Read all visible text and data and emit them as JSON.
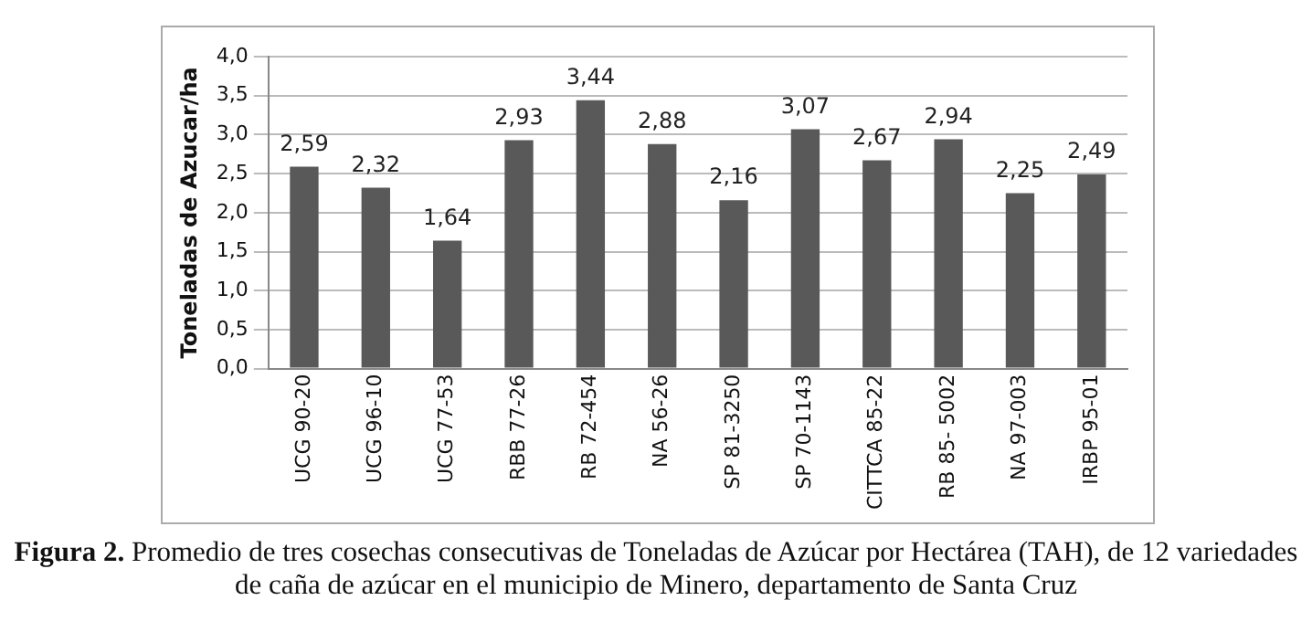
{
  "chart_data": {
    "type": "bar",
    "ylabel": "Toneladas de Azucar/ha",
    "categories": [
      "UCG 90-20",
      "UCG 96-10",
      "UCG 77-53",
      "RBB 77-26",
      "RB 72-454",
      "NA 56-26",
      "SP 81-3250",
      "SP 70-1143",
      "CITTCA 85-22",
      "RB 85- 5002",
      "NA 97-003",
      "IRBP 95-01"
    ],
    "values": [
      2.59,
      2.32,
      1.64,
      2.93,
      3.44,
      2.88,
      2.16,
      3.07,
      2.67,
      2.94,
      2.25,
      2.49
    ],
    "value_labels": [
      "2,59",
      "2,32",
      "1,64",
      "2,93",
      "3,44",
      "2,88",
      "2,16",
      "3,07",
      "2,67",
      "2,94",
      "2,25",
      "2,49"
    ],
    "color": "#595959",
    "ylim": [
      0,
      4
    ],
    "yticks": [
      {
        "value": 0,
        "label": "0,0"
      },
      {
        "value": 0.5,
        "label": "0,5"
      },
      {
        "value": 1,
        "label": "1,0"
      },
      {
        "value": 1.5,
        "label": "1,5"
      },
      {
        "value": 2,
        "label": "2,0"
      },
      {
        "value": 2.5,
        "label": "2,5"
      },
      {
        "value": 3,
        "label": "3,0"
      },
      {
        "value": 3.5,
        "label": "3,5"
      },
      {
        "value": 4,
        "label": "4,0"
      }
    ],
    "grid": "y",
    "legend": false,
    "annotations": [
      "Figura 2.",
      "Promedio de tres cosechas consecutivas de Toneladas de Azúcar por Hectárea (TAH), de 12 variedades de caña de azúcar en el municipio de Minero, departamento de Santa Cruz"
    ]
  }
}
